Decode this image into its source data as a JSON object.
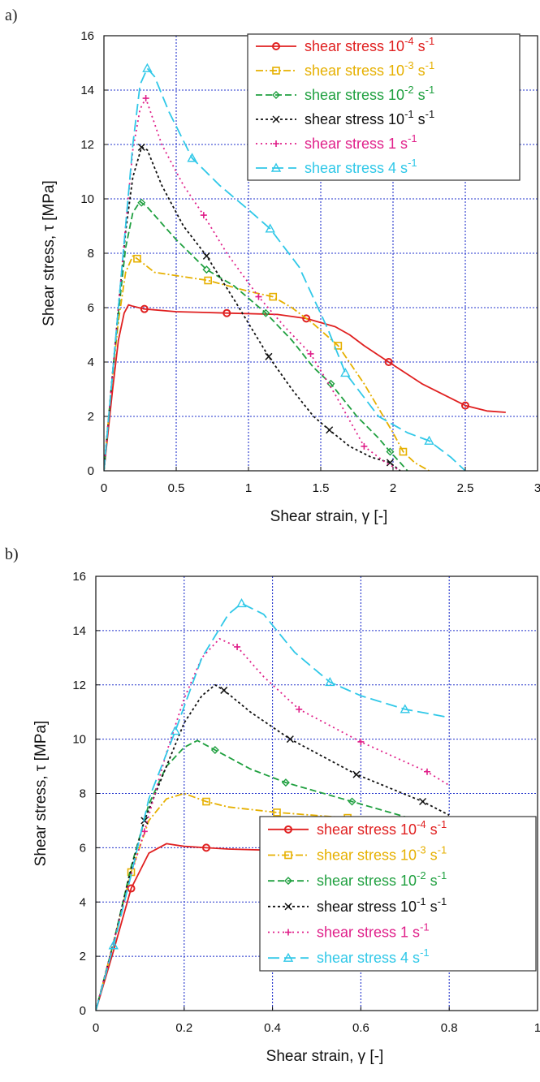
{
  "panels": [
    {
      "label": "a)"
    },
    {
      "label": "b)"
    }
  ],
  "chart_data": [
    {
      "type": "line",
      "xlabel": "Shear strain,  γ  [-]",
      "ylabel": "Shear stress,  τ [MPa]",
      "xlim": [
        0,
        3
      ],
      "ylim": [
        0,
        16
      ],
      "xticks": [
        0,
        0.5,
        1,
        1.5,
        2,
        2.5,
        3
      ],
      "xtick_labels": [
        "0",
        "0.5",
        "1",
        "1.5",
        "2",
        "2.5",
        "3"
      ],
      "yticks": [
        0,
        2,
        4,
        6,
        8,
        10,
        12,
        14,
        16
      ],
      "ytick_labels": [
        "0",
        "2",
        "4",
        "6",
        "8",
        "10",
        "12",
        "14",
        "16"
      ],
      "grid": true,
      "legend_position": "top-right",
      "series": [
        {
          "name": "shear stress 10^-4 s^-1",
          "legend_base": "shear stress 10",
          "legend_exp": "-4",
          "legend_unit": " s",
          "legend_unit_exp": "-1",
          "color": "#e02020",
          "marker": "circle",
          "dash": "",
          "markers_x": [
            0.28,
            0.85,
            1.4,
            1.97,
            2.5
          ],
          "x": [
            0,
            0.06,
            0.1,
            0.14,
            0.17,
            0.2,
            0.28,
            0.5,
            0.85,
            1.2,
            1.4,
            1.6,
            1.7,
            1.8,
            1.97,
            2.2,
            2.5,
            2.65,
            2.78
          ],
          "y": [
            0,
            3.0,
            4.8,
            5.8,
            6.1,
            6.05,
            5.95,
            5.85,
            5.8,
            5.75,
            5.6,
            5.3,
            5.0,
            4.6,
            4.0,
            3.2,
            2.4,
            2.2,
            2.15
          ]
        },
        {
          "name": "shear stress 10^-3 s^-1",
          "legend_base": "shear stress 10",
          "legend_exp": "-3",
          "legend_unit": " s",
          "legend_unit_exp": "-1",
          "color": "#e6b000",
          "marker": "square",
          "dash": "9,3,2,3",
          "markers_x": [
            0.23,
            0.72,
            1.17,
            1.62,
            2.07
          ],
          "x": [
            0,
            0.05,
            0.1,
            0.15,
            0.2,
            0.23,
            0.35,
            0.72,
            1.0,
            1.17,
            1.3,
            1.45,
            1.62,
            1.8,
            2.0,
            2.07,
            2.15,
            2.25
          ],
          "y": [
            0,
            3.0,
            5.5,
            7.3,
            7.9,
            7.8,
            7.3,
            7.0,
            6.6,
            6.4,
            6.0,
            5.4,
            4.6,
            3.2,
            1.4,
            0.7,
            0.3,
            0
          ]
        },
        {
          "name": "shear stress 10^-2 s^-1",
          "legend_base": "shear stress 10",
          "legend_exp": "-2",
          "legend_unit": " s",
          "legend_unit_exp": "-1",
          "color": "#20a040",
          "marker": "diamond",
          "dash": "8,4",
          "markers_x": [
            0.26,
            0.71,
            1.12,
            1.57,
            1.98
          ],
          "x": [
            0,
            0.05,
            0.1,
            0.15,
            0.2,
            0.25,
            0.3,
            0.5,
            0.71,
            0.9,
            1.12,
            1.3,
            1.45,
            1.57,
            1.75,
            1.9,
            1.98,
            2.05,
            2.1
          ],
          "y": [
            0,
            3.0,
            5.8,
            8.2,
            9.5,
            9.9,
            9.7,
            8.5,
            7.4,
            6.8,
            5.8,
            4.8,
            3.8,
            3.2,
            2.0,
            1.2,
            0.7,
            0.3,
            0
          ]
        },
        {
          "name": "shear stress 10^-1 s^-1",
          "legend_base": "shear stress 10",
          "legend_exp": "-1",
          "legend_unit": " s",
          "legend_unit_exp": "-1",
          "color": "#111111",
          "marker": "x",
          "dash": "3,3",
          "markers_x": [
            0.26,
            0.71,
            1.14,
            1.56,
            1.98
          ],
          "x": [
            0,
            0.05,
            0.1,
            0.15,
            0.2,
            0.26,
            0.3,
            0.4,
            0.55,
            0.71,
            0.9,
            1.14,
            1.3,
            1.45,
            1.56,
            1.7,
            1.85,
            1.98,
            2.05
          ],
          "y": [
            0,
            3.0,
            6.0,
            8.8,
            10.8,
            11.9,
            11.8,
            10.5,
            9.0,
            7.9,
            6.3,
            4.2,
            3.0,
            2.0,
            1.5,
            0.9,
            0.5,
            0.3,
            0
          ]
        },
        {
          "name": "shear stress 1 s^-1",
          "legend_base": "shear stress 1",
          "legend_exp": "",
          "legend_unit": " s",
          "legend_unit_exp": "-1",
          "color": "#e0208a",
          "marker": "plus",
          "dash": "2,4",
          "markers_x": [
            0.29,
            0.69,
            1.07,
            1.43,
            1.8
          ],
          "x": [
            0,
            0.05,
            0.1,
            0.15,
            0.2,
            0.25,
            0.29,
            0.4,
            0.55,
            0.69,
            0.85,
            1.07,
            1.25,
            1.43,
            1.6,
            1.8,
            1.95,
            2.05
          ],
          "y": [
            0,
            3.0,
            6.0,
            9.0,
            11.8,
            13.3,
            13.7,
            12.0,
            10.5,
            9.4,
            8.0,
            6.4,
            5.3,
            4.3,
            2.8,
            0.9,
            0.3,
            0
          ]
        },
        {
          "name": "shear stress 4 s^-1",
          "legend_base": "shear stress 4",
          "legend_exp": "",
          "legend_unit": " s",
          "legend_unit_exp": "-1",
          "color": "#30c8e8",
          "marker": "triangle",
          "dash": "14,6",
          "markers_x": [
            0.3,
            0.61,
            1.15,
            1.67,
            2.25
          ],
          "x": [
            0,
            0.05,
            0.1,
            0.15,
            0.2,
            0.25,
            0.3,
            0.35,
            0.45,
            0.61,
            0.8,
            1.0,
            1.15,
            1.35,
            1.55,
            1.67,
            1.9,
            2.1,
            2.25,
            2.4,
            2.5
          ],
          "y": [
            0,
            3.0,
            6.0,
            9.0,
            12.0,
            14.2,
            14.8,
            14.5,
            13.2,
            11.5,
            10.5,
            9.6,
            8.9,
            7.5,
            5.2,
            3.6,
            2.0,
            1.4,
            1.1,
            0.5,
            0
          ]
        }
      ]
    },
    {
      "type": "line",
      "xlabel": "Shear strain,  γ  [-]",
      "ylabel": "Shear stress,  τ [MPa]",
      "xlim": [
        0,
        1
      ],
      "ylim": [
        0,
        16
      ],
      "xticks": [
        0,
        0.2,
        0.4,
        0.6,
        0.8,
        1
      ],
      "xtick_labels": [
        "0",
        "0.2",
        "0.4",
        "0.6",
        "0.8",
        "1"
      ],
      "yticks": [
        0,
        2,
        4,
        6,
        8,
        10,
        12,
        14,
        16
      ],
      "ytick_labels": [
        "0",
        "2",
        "4",
        "6",
        "8",
        "10",
        "12",
        "14",
        "16"
      ],
      "grid": true,
      "legend_position": "bottom-right",
      "series": [
        {
          "name": "shear stress 10^-4 s^-1",
          "legend_base": "shear stress 10",
          "legend_exp": "-4",
          "legend_unit": " s",
          "legend_unit_exp": "-1",
          "color": "#e02020",
          "marker": "circle",
          "dash": "",
          "markers_x": [
            0.08,
            0.25,
            0.41,
            0.57,
            0.73
          ],
          "x": [
            0,
            0.04,
            0.08,
            0.12,
            0.16,
            0.2,
            0.25,
            0.3,
            0.41,
            0.57,
            0.73,
            0.8
          ],
          "y": [
            0,
            2.2,
            4.5,
            5.8,
            6.15,
            6.05,
            6.0,
            5.95,
            5.9,
            5.85,
            5.85,
            5.8
          ]
        },
        {
          "name": "shear stress 10^-3 s^-1",
          "legend_base": "shear stress 10",
          "legend_exp": "-3",
          "legend_unit": " s",
          "legend_unit_exp": "-1",
          "color": "#e6b000",
          "marker": "square",
          "dash": "9,3,2,3",
          "markers_x": [
            0.08,
            0.25,
            0.41,
            0.57,
            0.73
          ],
          "x": [
            0,
            0.04,
            0.08,
            0.12,
            0.16,
            0.2,
            0.25,
            0.3,
            0.41,
            0.57,
            0.73,
            0.8
          ],
          "y": [
            0,
            2.5,
            5.1,
            7.0,
            7.8,
            8.0,
            7.7,
            7.5,
            7.3,
            7.1,
            7.0,
            6.9
          ]
        },
        {
          "name": "shear stress 10^-2 s^-1",
          "legend_base": "shear stress 10",
          "legend_exp": "-2",
          "legend_unit": " s",
          "legend_unit_exp": "-1",
          "color": "#20a040",
          "marker": "diamond",
          "dash": "8,4",
          "markers_x": [
            0.27,
            0.43,
            0.58,
            0.73
          ],
          "x": [
            0,
            0.04,
            0.08,
            0.12,
            0.16,
            0.2,
            0.23,
            0.27,
            0.35,
            0.43,
            0.58,
            0.73,
            0.8
          ],
          "y": [
            0,
            2.5,
            5.3,
            7.6,
            9.0,
            9.7,
            9.95,
            9.6,
            8.9,
            8.4,
            7.7,
            7.0,
            6.7
          ]
        },
        {
          "name": "shear stress 10^-1 s^-1",
          "legend_base": "shear stress 10",
          "legend_exp": "-1",
          "legend_unit": " s",
          "legend_unit_exp": "-1",
          "color": "#111111",
          "marker": "x",
          "dash": "3,3",
          "markers_x": [
            0.11,
            0.29,
            0.44,
            0.59,
            0.74
          ],
          "x": [
            0,
            0.04,
            0.08,
            0.11,
            0.16,
            0.2,
            0.24,
            0.27,
            0.29,
            0.35,
            0.44,
            0.59,
            0.74,
            0.8
          ],
          "y": [
            0,
            2.5,
            5.2,
            7.0,
            9.0,
            10.6,
            11.6,
            12.0,
            11.8,
            11.0,
            10.0,
            8.7,
            7.7,
            7.2
          ]
        },
        {
          "name": "shear stress 1 s^-1",
          "legend_base": "shear stress 1",
          "legend_exp": "",
          "legend_unit": " s",
          "legend_unit_exp": "-1",
          "color": "#e0208a",
          "marker": "plus",
          "dash": "2,4",
          "markers_x": [
            0.11,
            0.32,
            0.46,
            0.6,
            0.75
          ],
          "x": [
            0,
            0.04,
            0.08,
            0.11,
            0.16,
            0.2,
            0.24,
            0.28,
            0.32,
            0.38,
            0.46,
            0.6,
            0.75,
            0.8
          ],
          "y": [
            0,
            2.5,
            5.0,
            6.6,
            9.5,
            11.5,
            13.0,
            13.7,
            13.4,
            12.3,
            11.1,
            9.9,
            8.8,
            8.3
          ]
        },
        {
          "name": "shear stress 4 s^-1",
          "legend_base": "shear stress 4",
          "legend_exp": "",
          "legend_unit": " s",
          "legend_unit_exp": "-1",
          "color": "#30c8e8",
          "marker": "triangle",
          "dash": "14,6",
          "markers_x": [
            0.04,
            0.18,
            0.33,
            0.53,
            0.7
          ],
          "x": [
            0,
            0.04,
            0.08,
            0.12,
            0.18,
            0.24,
            0.3,
            0.33,
            0.38,
            0.45,
            0.53,
            0.6,
            0.7,
            0.8
          ],
          "y": [
            0,
            2.4,
            5.0,
            7.8,
            10.3,
            13.0,
            14.6,
            15.0,
            14.6,
            13.2,
            12.1,
            11.6,
            11.1,
            10.8
          ]
        }
      ]
    }
  ]
}
